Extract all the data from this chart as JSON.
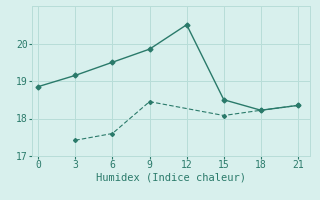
{
  "line1_x": [
    0,
    3,
    6,
    9,
    12,
    15,
    18,
    21
  ],
  "line1_y": [
    18.85,
    19.15,
    19.5,
    19.85,
    20.5,
    18.5,
    18.22,
    18.35
  ],
  "line2_x": [
    3,
    6,
    9,
    15,
    18,
    21
  ],
  "line2_y": [
    17.42,
    17.6,
    18.45,
    18.08,
    18.22,
    18.35
  ],
  "line_color": "#2a7a6a",
  "background_color": "#d8f0ed",
  "grid_color": "#b8ddd8",
  "xlabel": "Humidex (Indice chaleur)",
  "xlim": [
    -0.5,
    22
  ],
  "ylim": [
    17.0,
    21.0
  ],
  "xticks": [
    0,
    3,
    6,
    9,
    12,
    15,
    18,
    21
  ],
  "yticks": [
    17,
    18,
    19,
    20
  ],
  "tick_fontsize": 7,
  "xlabel_fontsize": 7.5
}
